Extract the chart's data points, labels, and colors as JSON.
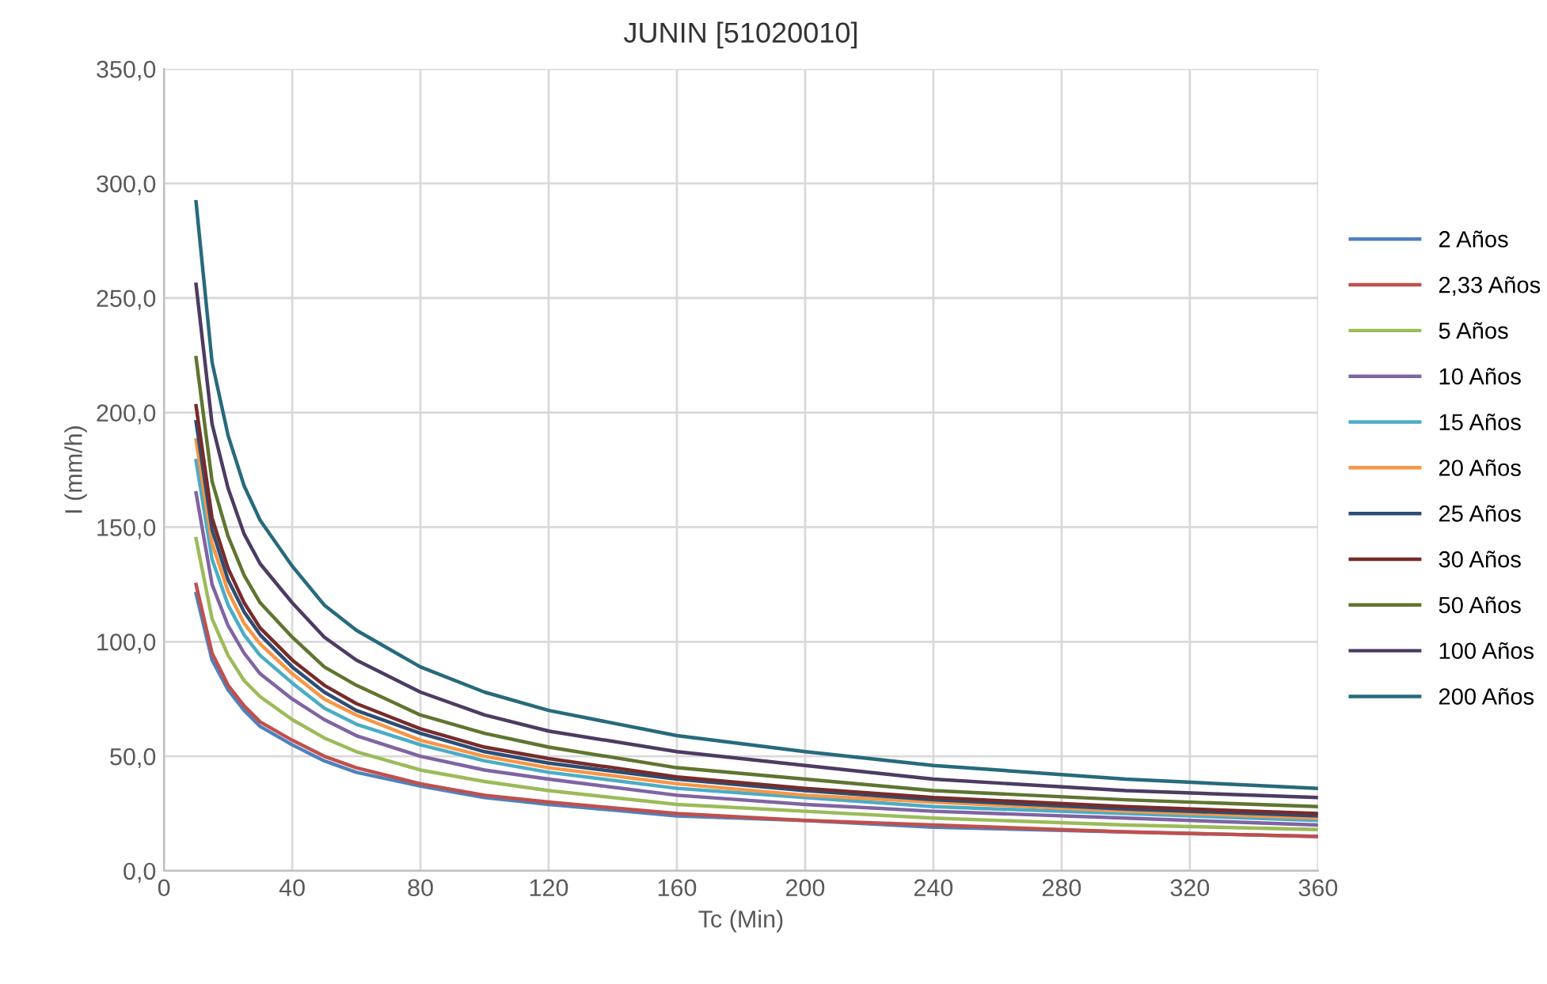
{
  "chart_data": {
    "type": "line",
    "title": "JUNIN [51020010]",
    "xlabel": "Tc (Min)",
    "ylabel": "I (mm/h)",
    "x": [
      10,
      15,
      20,
      25,
      30,
      40,
      50,
      60,
      80,
      100,
      120,
      160,
      200,
      240,
      300,
      360
    ],
    "xlim": [
      0,
      360
    ],
    "xticks": [
      0,
      40,
      80,
      120,
      160,
      200,
      240,
      280,
      320,
      360
    ],
    "ylim": [
      0,
      350
    ],
    "yticks": [
      {
        "value": 0,
        "label": "0,0"
      },
      {
        "value": 50,
        "label": "50,0"
      },
      {
        "value": 100,
        "label": "100,0"
      },
      {
        "value": 150,
        "label": "150,0"
      },
      {
        "value": 200,
        "label": "200,0"
      },
      {
        "value": 250,
        "label": "250,0"
      },
      {
        "value": 300,
        "label": "300,0"
      },
      {
        "value": 350,
        "label": "350,0"
      }
    ],
    "grid": true,
    "legend": "right",
    "marker": "none",
    "line_style": "solid",
    "series": [
      {
        "name": "2 Años",
        "color": "#4f81bd",
        "values": [
          121,
          92,
          79,
          70,
          63,
          55,
          48,
          43,
          37,
          32,
          29,
          24,
          22,
          19,
          17,
          15
        ]
      },
      {
        "name": "2,33 Años",
        "color": "#c0504d",
        "values": [
          125,
          95,
          81,
          72,
          65,
          57,
          50,
          45,
          38,
          33,
          30,
          25,
          22,
          20,
          17,
          15
        ]
      },
      {
        "name": "5 Años",
        "color": "#9bbb59",
        "values": [
          145,
          110,
          94,
          83,
          76,
          66,
          58,
          52,
          44,
          39,
          35,
          29,
          26,
          23,
          20,
          18
        ]
      },
      {
        "name": "10 Años",
        "color": "#8064a2",
        "values": [
          165,
          125,
          107,
          95,
          86,
          75,
          66,
          59,
          50,
          44,
          40,
          33,
          29,
          26,
          23,
          20
        ]
      },
      {
        "name": "15 Años",
        "color": "#4bacc6",
        "values": [
          179,
          136,
          116,
          103,
          94,
          82,
          71,
          64,
          55,
          48,
          43,
          36,
          32,
          28,
          25,
          22
        ]
      },
      {
        "name": "20 Años",
        "color": "#f79646",
        "values": [
          188,
          143,
          122,
          108,
          99,
          86,
          75,
          68,
          57,
          50,
          45,
          38,
          33,
          30,
          26,
          23
        ]
      },
      {
        "name": "25 Años",
        "color": "#2c4d75",
        "values": [
          196,
          149,
          127,
          113,
          103,
          89,
          78,
          70,
          60,
          52,
          47,
          40,
          35,
          31,
          27,
          24
        ]
      },
      {
        "name": "30 Años",
        "color": "#772c2a",
        "values": [
          203,
          154,
          132,
          117,
          106,
          92,
          81,
          73,
          62,
          54,
          49,
          41,
          36,
          32,
          28,
          25
        ]
      },
      {
        "name": "50 Años",
        "color": "#5f7530",
        "values": [
          224,
          170,
          146,
          129,
          117,
          102,
          89,
          81,
          68,
          60,
          54,
          45,
          40,
          35,
          31,
          28
        ]
      },
      {
        "name": "100 Años",
        "color": "#4d3b62",
        "values": [
          256,
          195,
          167,
          147,
          134,
          117,
          102,
          92,
          78,
          68,
          61,
          52,
          46,
          40,
          35,
          32
        ]
      },
      {
        "name": "200 Años",
        "color": "#276a7c",
        "values": [
          292,
          222,
          190,
          168,
          153,
          133,
          116,
          105,
          89,
          78,
          70,
          59,
          52,
          46,
          40,
          36
        ]
      }
    ]
  }
}
